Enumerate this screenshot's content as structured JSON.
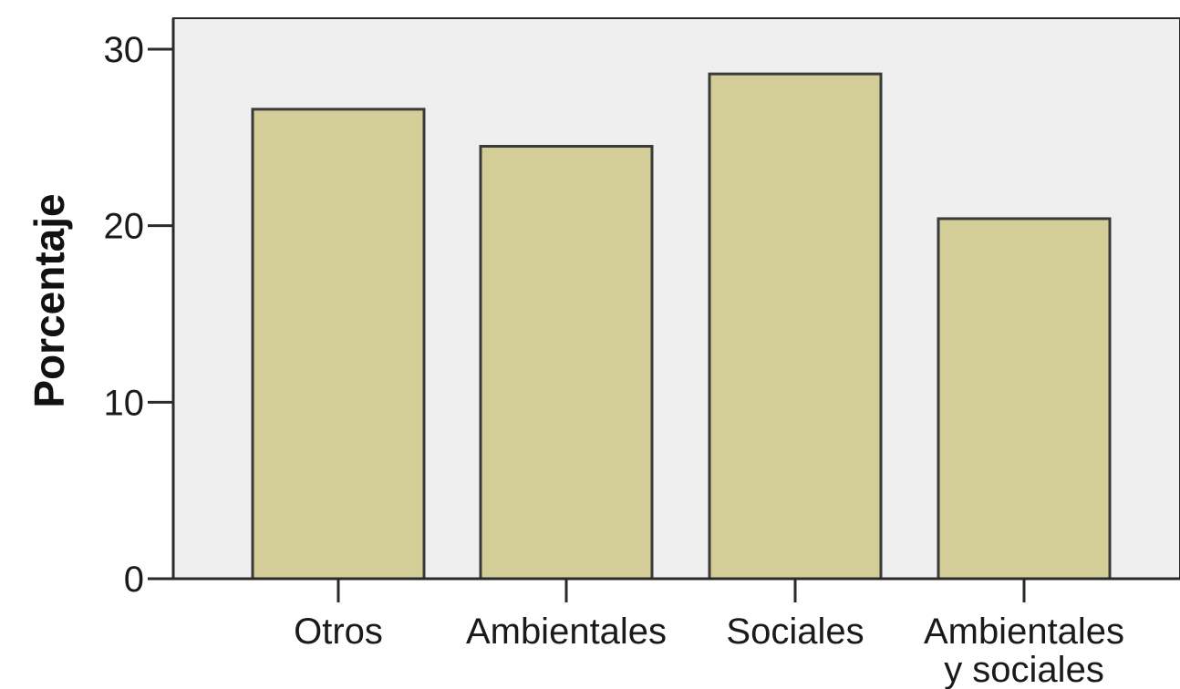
{
  "chart_data": {
    "type": "bar",
    "title": "",
    "xlabel": "",
    "ylabel": "Porcentaje",
    "categories": [
      "Otros",
      "Ambientales",
      "Sociales",
      "Ambientales y sociales"
    ],
    "category_label_lines": [
      [
        "Otros"
      ],
      [
        "Ambientales"
      ],
      [
        "Sociales"
      ],
      [
        "Ambientales",
        "y sociales"
      ]
    ],
    "values": [
      26.6,
      24.5,
      28.6,
      20.4
    ],
    "ylim": [
      0,
      32
    ],
    "yticks": [
      0,
      10,
      20,
      30
    ],
    "ytick_labels": [
      "0",
      "10",
      "20",
      "30"
    ],
    "grid": false,
    "legend": "none",
    "colors": {
      "plot_background": "#efefef",
      "bar_fill": "#d3cd97",
      "bar_stroke": "#3a3a3a",
      "axis": "#2a2a2a"
    }
  }
}
